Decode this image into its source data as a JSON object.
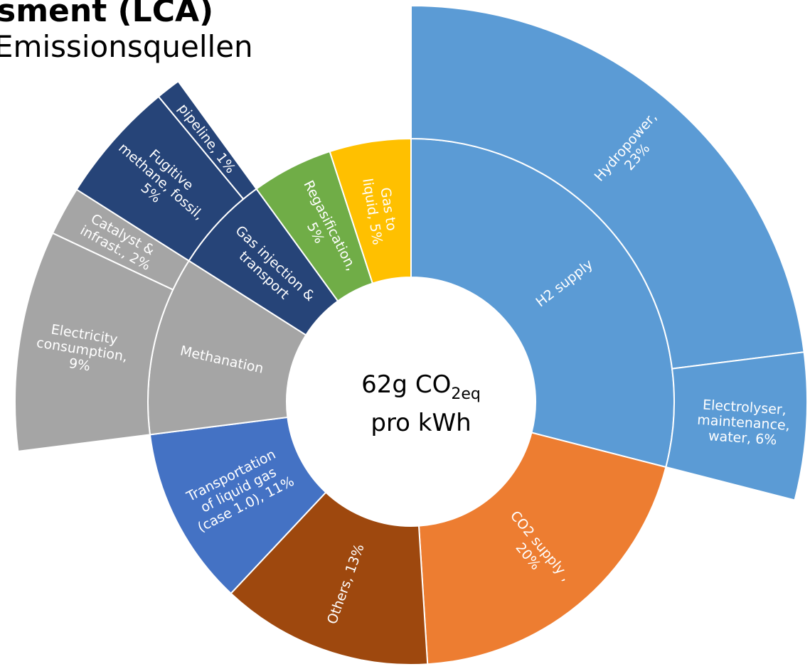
{
  "chart_data": {
    "type": "sunburst",
    "title": "sment (LCA)",
    "subtitle": "Emissionsquellen",
    "center_label": {
      "line1": "62g CO",
      "subscript": "2eq",
      "line2": "pro kWh"
    },
    "segments": [
      {
        "label": [
          "H2 supply"
        ],
        "value": 29,
        "color": "#5b9bd5",
        "children": [
          {
            "label": [
              "Hydropower,",
              "23%"
            ],
            "value": 23
          },
          {
            "label": [
              "Electrolyser,",
              "maintenance,",
              "water, 6%"
            ],
            "value": 6
          }
        ]
      },
      {
        "label": [
          "CO2 supply ,",
          "20%"
        ],
        "value": 20,
        "color": "#ed7d31",
        "children": []
      },
      {
        "label": [
          "Others, 13%"
        ],
        "value": 13,
        "color": "#9e480e",
        "children": []
      },
      {
        "label": [
          "Transportation",
          "of liquid gas",
          "(case 1.0), 11%"
        ],
        "value": 11,
        "color": "#4472c4",
        "children": []
      },
      {
        "label": [
          "Methanation"
        ],
        "value": 11,
        "color": "#a5a5a5",
        "children": [
          {
            "label": [
              "Electricity",
              "consumption,",
              "9%"
            ],
            "value": 9
          },
          {
            "label": [
              "Catalyst &",
              "infrast., 2%"
            ],
            "value": 2
          }
        ]
      },
      {
        "label": [
          "Gas injection &",
          "transport"
        ],
        "value": 6,
        "color": "#264478",
        "children": [
          {
            "label": [
              "Fugitive",
              "methane, fossil,",
              "5%"
            ],
            "value": 5
          },
          {
            "label": [
              "pipeline, 1%"
            ],
            "value": 1
          }
        ]
      },
      {
        "label": [
          "Regasification,",
          "5%"
        ],
        "value": 5,
        "color": "#70ad47",
        "children": []
      },
      {
        "label": [
          "Gas to",
          "liquid, 5%"
        ],
        "value": 5,
        "color": "#ffc000",
        "children": []
      }
    ]
  }
}
